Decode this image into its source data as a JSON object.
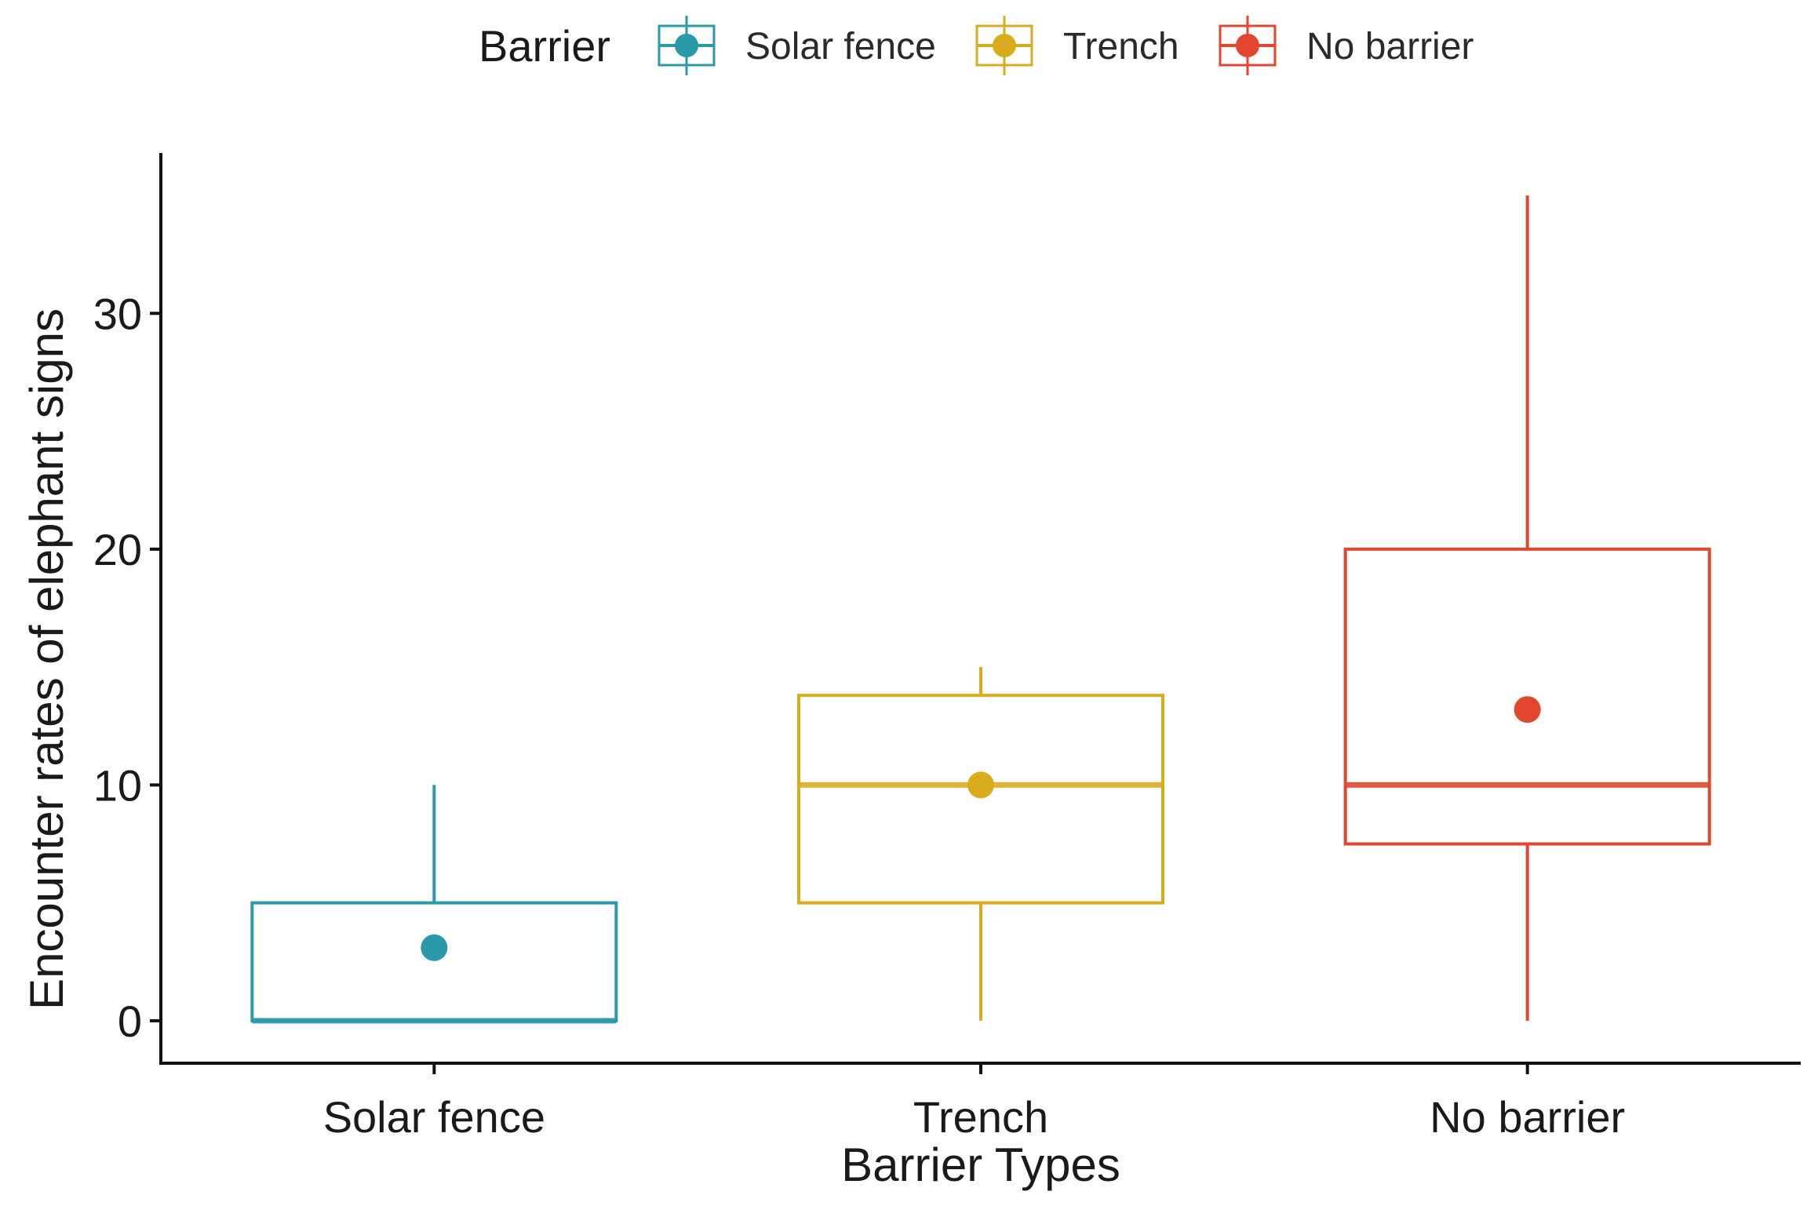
{
  "chart_data": {
    "type": "boxplot",
    "title": "",
    "xlabel": "Barrier Types",
    "ylabel": "Encounter rates of elephant signs",
    "ylim": [
      -1.8,
      36.8
    ],
    "y_ticks": [
      0,
      10,
      20,
      30
    ],
    "categories": [
      "Solar fence",
      "Trench",
      "No barrier"
    ],
    "legend": {
      "title": "Barrier",
      "position": "top",
      "entries": [
        "Solar fence",
        "Trench",
        "No barrier"
      ]
    },
    "series": [
      {
        "name": "Solar fence",
        "color": "#2a9aaa",
        "min": 0,
        "q1": 0,
        "median": 0,
        "q3": 5,
        "max": 10,
        "mean": 3.1
      },
      {
        "name": "Trench",
        "color": "#d9ac1e",
        "min": 0,
        "q1": 5,
        "median": 10,
        "q3": 13.8,
        "max": 15,
        "mean": 10
      },
      {
        "name": "No barrier",
        "color": "#e2462e",
        "min": 0,
        "q1": 7.5,
        "median": 10,
        "q3": 20,
        "max": 35,
        "mean": 13.2
      }
    ],
    "grid": false
  }
}
